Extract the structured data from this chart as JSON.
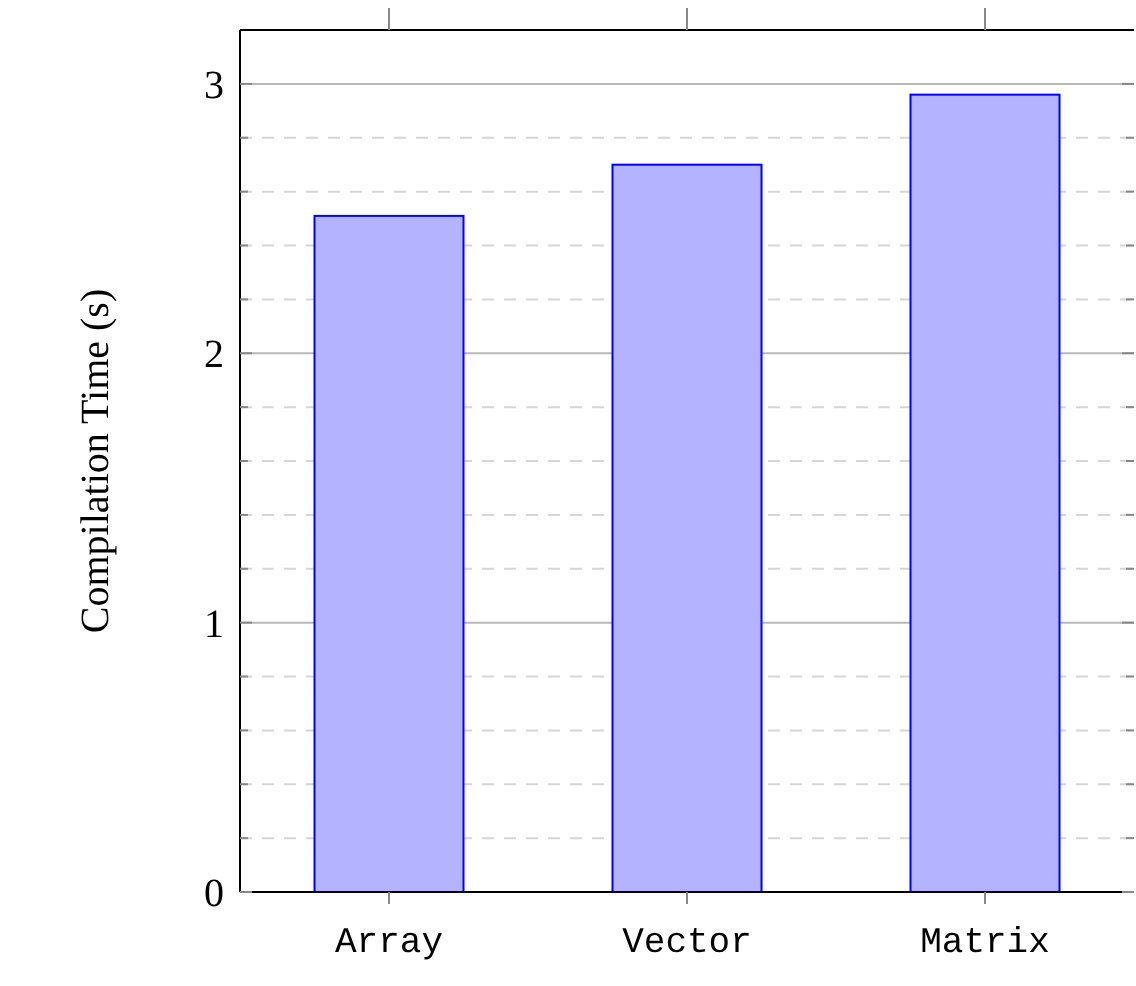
{
  "chart_data": {
    "type": "bar",
    "ylabel": "Compilation Time (s)",
    "categories": [
      "Array",
      "Vector",
      "Matrix"
    ],
    "series": [
      {
        "color": "#b3b3ff",
        "values": [
          2.51,
          2.7,
          2.96
        ]
      }
    ],
    "ylim": [
      0,
      3.2
    ],
    "yticks": [
      0,
      {
        "value": 0.2,
        "label": null
      },
      {
        "value": 0.4,
        "label": null
      },
      {
        "value": 0.6,
        "label": null
      },
      {
        "value": 0.8,
        "label": null
      },
      1,
      {
        "value": 1.2,
        "label": null
      },
      {
        "value": 1.4,
        "label": null
      },
      {
        "value": 1.6,
        "label": null
      },
      {
        "value": 1.8,
        "label": null
      },
      2,
      {
        "value": 2.2,
        "label": null
      },
      {
        "value": 2.4,
        "label": null
      },
      {
        "value": 2.6,
        "label": null
      },
      {
        "value": 2.8,
        "label": null
      },
      3
    ],
    "grid": true
  }
}
